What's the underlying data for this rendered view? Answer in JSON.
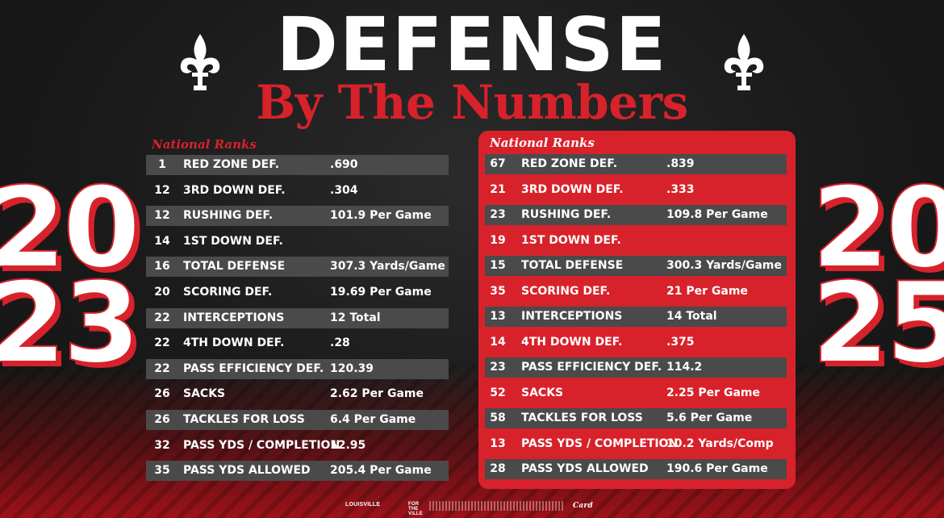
{
  "header": {
    "title": "DEFENSE",
    "subtitle": "By The Numbers"
  },
  "years": {
    "left": [
      "20",
      "23"
    ],
    "right": [
      "20",
      "25"
    ]
  },
  "labels": {
    "national_ranks": "National Ranks"
  },
  "colors": {
    "accent_red": "#d8222b",
    "band_gray": "#4a4a4a",
    "background": "#1a1a1a"
  },
  "icons": {
    "fleur": "fleur-de-lis-icon"
  },
  "stats_2023": [
    {
      "rank": "1",
      "stat": "RED ZONE DEF.",
      "value": ".690"
    },
    {
      "rank": "12",
      "stat": "3RD DOWN DEF.",
      "value": ".304"
    },
    {
      "rank": "12",
      "stat": "RUSHING DEF.",
      "value": "101.9 Per Game"
    },
    {
      "rank": "14",
      "stat": "1ST DOWN DEF.",
      "value": ""
    },
    {
      "rank": "16",
      "stat": "TOTAL DEFENSE",
      "value": "307.3 Yards/Game"
    },
    {
      "rank": "20",
      "stat": "SCORING DEF.",
      "value": "19.69 Per Game"
    },
    {
      "rank": "22",
      "stat": "INTERCEPTIONS",
      "value": "12 Total"
    },
    {
      "rank": "22",
      "stat": "4TH DOWN DEF.",
      "value": ".28"
    },
    {
      "rank": "22",
      "stat": "PASS EFFICIENCY DEF.",
      "value": "120.39"
    },
    {
      "rank": "26",
      "stat": "SACKS",
      "value": "2.62 Per Game"
    },
    {
      "rank": "26",
      "stat": "TACKLES FOR LOSS",
      "value": "6.4 Per Game"
    },
    {
      "rank": "32",
      "stat": "PASS YDS / COMPLETION",
      "value": "12.95"
    },
    {
      "rank": "35",
      "stat": "PASS YDS ALLOWED",
      "value": "205.4 Per Game"
    }
  ],
  "stats_2025": [
    {
      "rank": "67",
      "stat": "RED ZONE DEF.",
      "value": ".839"
    },
    {
      "rank": "21",
      "stat": "3RD DOWN DEF.",
      "value": ".333"
    },
    {
      "rank": "23",
      "stat": "RUSHING DEF.",
      "value": "109.8 Per Game"
    },
    {
      "rank": "19",
      "stat": "1ST DOWN DEF.",
      "value": ""
    },
    {
      "rank": "15",
      "stat": "TOTAL DEFENSE",
      "value": "300.3 Yards/Game"
    },
    {
      "rank": "35",
      "stat": "SCORING DEF.",
      "value": "21 Per Game"
    },
    {
      "rank": "13",
      "stat": "INTERCEPTIONS",
      "value": "14 Total"
    },
    {
      "rank": "14",
      "stat": "4TH DOWN DEF.",
      "value": ".375"
    },
    {
      "rank": "23",
      "stat": "PASS EFFICIENCY DEF.",
      "value": "114.2"
    },
    {
      "rank": "52",
      "stat": "SACKS",
      "value": "2.25 Per Game"
    },
    {
      "rank": "58",
      "stat": "TACKLES FOR LOSS",
      "value": "5.6 Per Game"
    },
    {
      "rank": "13",
      "stat": "PASS YDS / COMPLETION",
      "value": "10.2 Yards/Comp"
    },
    {
      "rank": "28",
      "stat": "PASS YDS ALLOWED",
      "value": "190.6 Per Game"
    }
  ],
  "footer": {
    "logo_left": "LOUISVILLE",
    "logo_mid": "FOR THE VILLE",
    "logo_right": "Card"
  }
}
